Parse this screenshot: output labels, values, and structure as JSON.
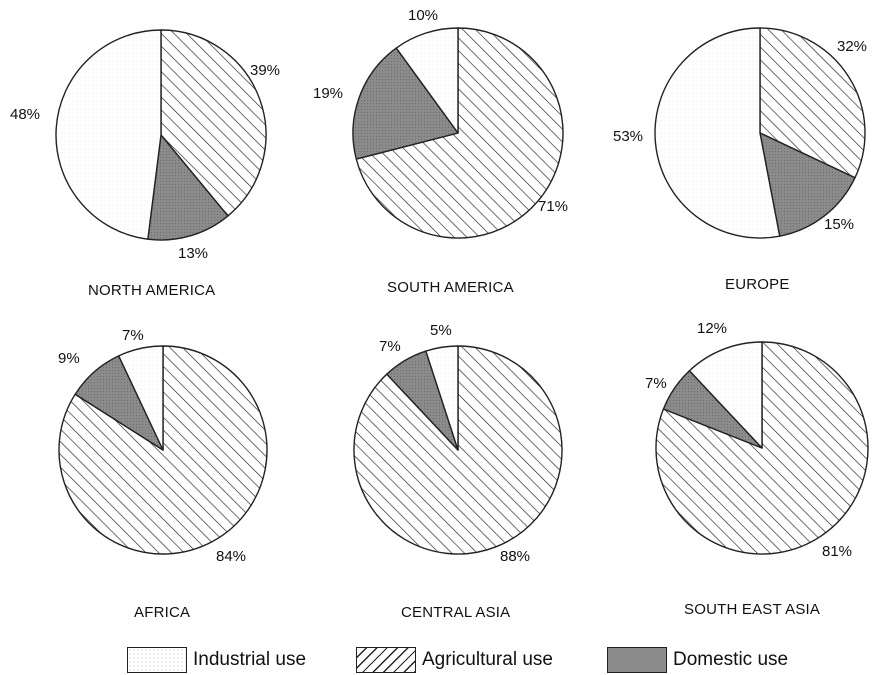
{
  "chart_data": {
    "type": "pie",
    "categories": [
      "Industrial use",
      "Agricultural use",
      "Domestic use"
    ],
    "colors": {
      "Industrial use": "#ffffff",
      "Agricultural use": "hatch",
      "Domestic use": "#8c8c8c"
    },
    "legend_position": "bottom",
    "pies": [
      {
        "region": "NORTH AMERICA",
        "values": {
          "Industrial use": 48,
          "Agricultural use": 39,
          "Domestic use": 13
        },
        "labels": {
          "Industrial use": "48%",
          "Agricultural use": "39%",
          "Domestic use": "13%"
        }
      },
      {
        "region": "SOUTH AMERICA",
        "values": {
          "Industrial use": 10,
          "Agricultural use": 71,
          "Domestic use": 19
        },
        "labels": {
          "Industrial use": "10%",
          "Agricultural use": "71%",
          "Domestic use": "19%"
        }
      },
      {
        "region": "EUROPE",
        "values": {
          "Industrial use": 53,
          "Agricultural use": 32,
          "Domestic use": 15
        },
        "labels": {
          "Industrial use": "53%",
          "Agricultural use": "32%",
          "Domestic use": "15%"
        }
      },
      {
        "region": "AFRICA",
        "values": {
          "Industrial use": 7,
          "Agricultural use": 84,
          "Domestic use": 9
        },
        "labels": {
          "Industrial use": "7%",
          "Agricultural use": "84%",
          "Domestic use": "9%"
        }
      },
      {
        "region": "CENTRAL ASIA",
        "values": {
          "Industrial use": 5,
          "Agricultural use": 88,
          "Domestic use": 7
        },
        "labels": {
          "Industrial use": "5%",
          "Agricultural use": "88%",
          "Domestic use": "7%"
        }
      },
      {
        "region": "SOUTH EAST ASIA",
        "values": {
          "Industrial use": 12,
          "Agricultural use": 81,
          "Domestic use": 7
        },
        "labels": {
          "Industrial use": "12%",
          "Agricultural use": "81%",
          "Domestic use": "7%"
        }
      }
    ]
  },
  "legend": {
    "industrial": "Industrial use",
    "agricultural": "Agricultural use",
    "domestic": "Domestic use"
  }
}
